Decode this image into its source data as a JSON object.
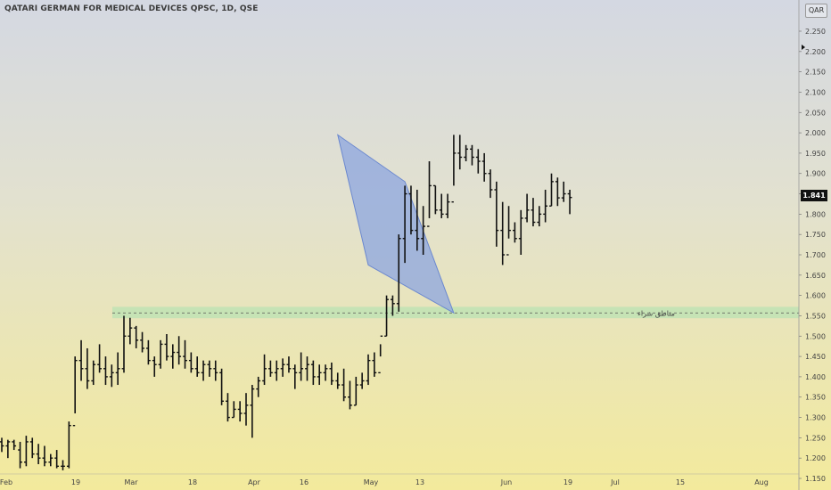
{
  "header": {
    "title": "QATARI GERMAN FOR MEDICAL DEVICES QPSC, 1D, QSE",
    "currency": "QAR"
  },
  "last_price": "1.841",
  "chart_data": {
    "type": "ohlc",
    "x_axis_labels": [
      "Feb",
      "19",
      "Mar",
      "18",
      "Apr",
      "16",
      "May",
      "13",
      "Jun",
      "19",
      "Jul",
      "15",
      "Aug"
    ],
    "y_axis_labels": [
      "2.250",
      "2.200",
      "2.150",
      "2.100",
      "2.050",
      "2.000",
      "1.950",
      "1.900",
      "1.850",
      "1.800",
      "1.750",
      "1.700",
      "1.650",
      "1.600",
      "1.550",
      "1.500",
      "1.450",
      "1.400",
      "1.350",
      "1.300",
      "1.250",
      "1.200",
      "1.150"
    ],
    "ylim": [
      1.15,
      2.3
    ],
    "zone": {
      "label": "مناطق شراء",
      "low": 1.544,
      "high": 1.572,
      "mid": 1.557
    },
    "pattern": {
      "type": "diamond",
      "points": [
        {
          "bar": 55,
          "price": 1.995
        },
        {
          "bar": 66,
          "price": 1.88
        },
        {
          "bar": 74,
          "price": 1.557
        },
        {
          "bar": 60,
          "price": 1.675
        }
      ]
    },
    "bars": [
      [
        1.24,
        1.25,
        1.215,
        1.23
      ],
      [
        1.23,
        1.245,
        1.2,
        1.24
      ],
      [
        1.24,
        1.245,
        1.22,
        1.23
      ],
      [
        1.22,
        1.24,
        1.175,
        1.19
      ],
      [
        1.19,
        1.255,
        1.18,
        1.24
      ],
      [
        1.24,
        1.25,
        1.2,
        1.21
      ],
      [
        1.21,
        1.235,
        1.185,
        1.2
      ],
      [
        1.2,
        1.23,
        1.18,
        1.19
      ],
      [
        1.19,
        1.21,
        1.18,
        1.2
      ],
      [
        1.2,
        1.22,
        1.175,
        1.18
      ],
      [
        1.18,
        1.195,
        1.17,
        1.18
      ],
      [
        1.18,
        1.29,
        1.175,
        1.28
      ],
      [
        1.28,
        1.45,
        1.31,
        1.44
      ],
      [
        1.44,
        1.49,
        1.39,
        1.42
      ],
      [
        1.42,
        1.47,
        1.37,
        1.39
      ],
      [
        1.39,
        1.44,
        1.38,
        1.43
      ],
      [
        1.43,
        1.48,
        1.41,
        1.42
      ],
      [
        1.42,
        1.45,
        1.38,
        1.4
      ],
      [
        1.4,
        1.43,
        1.375,
        1.41
      ],
      [
        1.41,
        1.46,
        1.38,
        1.42
      ],
      [
        1.42,
        1.55,
        1.41,
        1.5
      ],
      [
        1.5,
        1.545,
        1.48,
        1.52
      ],
      [
        1.52,
        1.525,
        1.47,
        1.49
      ],
      [
        1.49,
        1.51,
        1.46,
        1.47
      ],
      [
        1.47,
        1.49,
        1.43,
        1.44
      ],
      [
        1.44,
        1.45,
        1.4,
        1.43
      ],
      [
        1.43,
        1.49,
        1.42,
        1.48
      ],
      [
        1.48,
        1.505,
        1.44,
        1.45
      ],
      [
        1.45,
        1.48,
        1.42,
        1.46
      ],
      [
        1.46,
        1.5,
        1.43,
        1.45
      ],
      [
        1.45,
        1.49,
        1.42,
        1.44
      ],
      [
        1.44,
        1.46,
        1.41,
        1.42
      ],
      [
        1.42,
        1.45,
        1.4,
        1.41
      ],
      [
        1.41,
        1.44,
        1.39,
        1.43
      ],
      [
        1.43,
        1.44,
        1.4,
        1.42
      ],
      [
        1.42,
        1.44,
        1.39,
        1.41
      ],
      [
        1.41,
        1.42,
        1.33,
        1.34
      ],
      [
        1.34,
        1.36,
        1.29,
        1.3
      ],
      [
        1.3,
        1.34,
        1.3,
        1.32
      ],
      [
        1.32,
        1.34,
        1.29,
        1.31
      ],
      [
        1.31,
        1.36,
        1.28,
        1.33
      ],
      [
        1.33,
        1.38,
        1.25,
        1.37
      ],
      [
        1.37,
        1.4,
        1.35,
        1.39
      ],
      [
        1.39,
        1.455,
        1.38,
        1.42
      ],
      [
        1.42,
        1.44,
        1.4,
        1.41
      ],
      [
        1.41,
        1.44,
        1.39,
        1.42
      ],
      [
        1.42,
        1.445,
        1.4,
        1.43
      ],
      [
        1.43,
        1.45,
        1.41,
        1.42
      ],
      [
        1.42,
        1.43,
        1.37,
        1.41
      ],
      [
        1.41,
        1.46,
        1.39,
        1.42
      ],
      [
        1.42,
        1.45,
        1.39,
        1.43
      ],
      [
        1.43,
        1.44,
        1.38,
        1.4
      ],
      [
        1.4,
        1.43,
        1.38,
        1.41
      ],
      [
        1.41,
        1.43,
        1.39,
        1.42
      ],
      [
        1.42,
        1.435,
        1.38,
        1.39
      ],
      [
        1.39,
        1.41,
        1.37,
        1.38
      ],
      [
        1.38,
        1.42,
        1.34,
        1.35
      ],
      [
        1.35,
        1.39,
        1.32,
        1.33
      ],
      [
        1.33,
        1.4,
        1.33,
        1.38
      ],
      [
        1.38,
        1.41,
        1.37,
        1.39
      ],
      [
        1.39,
        1.455,
        1.38,
        1.44
      ],
      [
        1.44,
        1.46,
        1.4,
        1.41
      ],
      [
        1.41,
        1.48,
        1.45,
        1.5
      ],
      [
        1.5,
        1.6,
        1.5,
        1.59
      ],
      [
        1.59,
        1.6,
        1.55,
        1.58
      ],
      [
        1.58,
        1.75,
        1.56,
        1.74
      ],
      [
        1.74,
        1.87,
        1.68,
        1.85
      ],
      [
        1.85,
        1.87,
        1.75,
        1.76
      ],
      [
        1.76,
        1.86,
        1.71,
        1.74
      ],
      [
        1.74,
        1.82,
        1.7,
        1.77
      ],
      [
        1.77,
        1.93,
        1.79,
        1.87
      ],
      [
        1.87,
        1.87,
        1.8,
        1.81
      ],
      [
        1.81,
        1.85,
        1.79,
        1.8
      ],
      [
        1.8,
        1.85,
        1.79,
        1.83
      ],
      [
        1.83,
        1.995,
        1.87,
        1.95
      ],
      [
        1.95,
        1.995,
        1.91,
        1.94
      ],
      [
        1.94,
        1.97,
        1.93,
        1.96
      ],
      [
        1.96,
        1.97,
        1.92,
        1.94
      ],
      [
        1.94,
        1.96,
        1.9,
        1.93
      ],
      [
        1.93,
        1.95,
        1.88,
        1.9
      ],
      [
        1.9,
        1.91,
        1.84,
        1.86
      ],
      [
        1.86,
        1.88,
        1.72,
        1.76
      ],
      [
        1.76,
        1.83,
        1.675,
        1.7
      ],
      [
        1.7,
        1.82,
        1.74,
        1.76
      ],
      [
        1.76,
        1.78,
        1.73,
        1.74
      ],
      [
        1.74,
        1.81,
        1.7,
        1.79
      ],
      [
        1.79,
        1.85,
        1.78,
        1.81
      ],
      [
        1.81,
        1.84,
        1.77,
        1.78
      ],
      [
        1.78,
        1.82,
        1.77,
        1.8
      ],
      [
        1.8,
        1.86,
        1.78,
        1.82
      ],
      [
        1.82,
        1.9,
        1.82,
        1.88
      ],
      [
        1.88,
        1.89,
        1.82,
        1.84
      ],
      [
        1.84,
        1.88,
        1.83,
        1.85
      ],
      [
        1.85,
        1.86,
        1.8,
        1.841
      ]
    ],
    "colors": {
      "bars": "#111111",
      "zone_fill": "#bfe3b4",
      "pattern_fill": "#8fa8df",
      "pattern_stroke": "#6b88cf"
    }
  }
}
